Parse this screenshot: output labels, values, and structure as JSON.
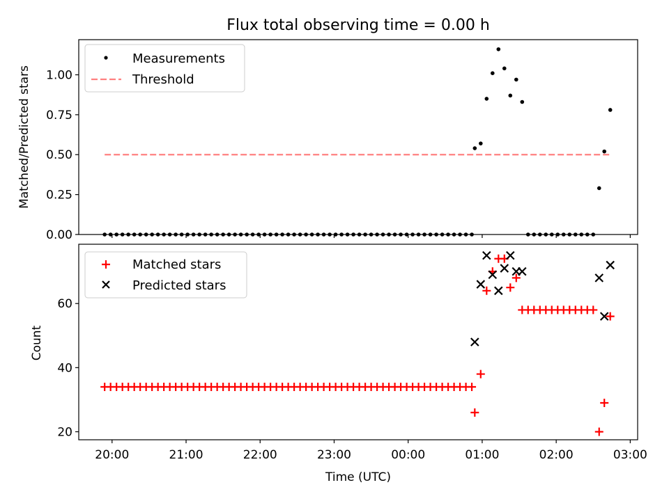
{
  "title": "Flux total observing time = 0.00 h",
  "xlabel": "Time (UTC)",
  "x_tick_labels": [
    "20:00",
    "21:00",
    "22:00",
    "23:00",
    "00:00",
    "01:00",
    "02:00",
    "03:00"
  ],
  "colors": {
    "measurement": "#000000",
    "threshold": "#ff8080",
    "matched": "#ff0000",
    "predicted": "#000000"
  },
  "chart_data": [
    {
      "type": "scatter",
      "title": "Flux total observing time = 0.00 h",
      "xlabel": "",
      "ylabel": "Matched/Predicted stars",
      "x_unit": "hours since 20:00 UTC",
      "xlim": [
        -0.45,
        7.1
      ],
      "ylim": [
        0.0,
        1.22
      ],
      "yticks": [
        0.0,
        0.25,
        0.5,
        0.75,
        1.0
      ],
      "ytick_labels": [
        "0.00",
        "0.25",
        "0.50",
        "0.75",
        "1.00"
      ],
      "legend": {
        "position": "upper-left",
        "entries": [
          "Measurements",
          "Threshold"
        ]
      },
      "series": [
        {
          "name": "Measurements",
          "marker": "dot",
          "x": [
            -0.1,
            -0.02,
            0.06,
            0.14,
            0.22,
            0.3,
            0.38,
            0.46,
            0.54,
            0.62,
            0.7,
            0.78,
            0.86,
            0.94,
            1.02,
            1.1,
            1.18,
            1.26,
            1.34,
            1.42,
            1.5,
            1.58,
            1.66,
            1.74,
            1.82,
            1.9,
            1.98,
            2.06,
            2.14,
            2.22,
            2.3,
            2.38,
            2.46,
            2.54,
            2.62,
            2.7,
            2.78,
            2.86,
            2.94,
            3.02,
            3.1,
            3.18,
            3.26,
            3.34,
            3.42,
            3.5,
            3.58,
            3.66,
            3.74,
            3.82,
            3.9,
            3.98,
            4.06,
            4.14,
            4.22,
            4.3,
            4.38,
            4.46,
            4.54,
            4.62,
            4.7,
            4.78,
            4.86,
            4.9,
            4.98,
            5.06,
            5.14,
            5.22,
            5.3,
            5.38,
            5.46,
            5.54,
            5.62,
            5.7,
            5.78,
            5.86,
            5.94,
            6.02,
            6.1,
            6.18,
            6.26,
            6.34,
            6.42,
            6.5,
            6.58,
            6.65,
            6.73
          ],
          "y": [
            0,
            0,
            0,
            0,
            0,
            0,
            0,
            0,
            0,
            0,
            0,
            0,
            0,
            0,
            0,
            0,
            0,
            0,
            0,
            0,
            0,
            0,
            0,
            0,
            0,
            0,
            0,
            0,
            0,
            0,
            0,
            0,
            0,
            0,
            0,
            0,
            0,
            0,
            0,
            0,
            0,
            0,
            0,
            0,
            0,
            0,
            0,
            0,
            0,
            0,
            0,
            0,
            0,
            0,
            0,
            0,
            0,
            0,
            0,
            0,
            0,
            0,
            0,
            0.54,
            0.57,
            0.85,
            1.01,
            1.16,
            1.04,
            0.87,
            0.97,
            0.83,
            0,
            0,
            0,
            0,
            0,
            0,
            0,
            0,
            0,
            0,
            0,
            0,
            0.29,
            0.52,
            0.78
          ]
        },
        {
          "name": "Threshold",
          "style": "dashed",
          "x": [
            -0.1,
            6.73
          ],
          "y": [
            0.5,
            0.5
          ]
        }
      ]
    },
    {
      "type": "scatter",
      "xlabel": "Time (UTC)",
      "ylabel": "Count",
      "x_unit": "hours since 20:00 UTC",
      "xlim": [
        -0.45,
        7.1
      ],
      "ylim": [
        17.5,
        78.5
      ],
      "yticks": [
        20,
        40,
        60
      ],
      "ytick_labels": [
        "20",
        "40",
        "60"
      ],
      "xticks": [
        0,
        1,
        2,
        3,
        4,
        5,
        6,
        7
      ],
      "xtick_labels": [
        "20:00",
        "21:00",
        "22:00",
        "23:00",
        "00:00",
        "01:00",
        "02:00",
        "03:00"
      ],
      "legend": {
        "position": "upper-left",
        "entries": [
          "Matched stars",
          "Predicted stars"
        ]
      },
      "series": [
        {
          "name": "Matched stars",
          "marker": "plus",
          "x": [
            -0.1,
            -0.02,
            0.06,
            0.14,
            0.22,
            0.3,
            0.38,
            0.46,
            0.54,
            0.62,
            0.7,
            0.78,
            0.86,
            0.94,
            1.02,
            1.1,
            1.18,
            1.26,
            1.34,
            1.42,
            1.5,
            1.58,
            1.66,
            1.74,
            1.82,
            1.9,
            1.98,
            2.06,
            2.14,
            2.22,
            2.3,
            2.38,
            2.46,
            2.54,
            2.62,
            2.7,
            2.78,
            2.86,
            2.94,
            3.02,
            3.1,
            3.18,
            3.26,
            3.34,
            3.42,
            3.5,
            3.58,
            3.66,
            3.74,
            3.82,
            3.9,
            3.98,
            4.06,
            4.14,
            4.22,
            4.3,
            4.38,
            4.46,
            4.54,
            4.62,
            4.7,
            4.78,
            4.86,
            4.9,
            4.98,
            5.06,
            5.14,
            5.22,
            5.3,
            5.38,
            5.46,
            5.54,
            5.62,
            5.7,
            5.78,
            5.86,
            5.94,
            6.02,
            6.1,
            6.18,
            6.26,
            6.34,
            6.42,
            6.5,
            6.58,
            6.65,
            6.73
          ],
          "y": [
            34,
            34,
            34,
            34,
            34,
            34,
            34,
            34,
            34,
            34,
            34,
            34,
            34,
            34,
            34,
            34,
            34,
            34,
            34,
            34,
            34,
            34,
            34,
            34,
            34,
            34,
            34,
            34,
            34,
            34,
            34,
            34,
            34,
            34,
            34,
            34,
            34,
            34,
            34,
            34,
            34,
            34,
            34,
            34,
            34,
            34,
            34,
            34,
            34,
            34,
            34,
            34,
            34,
            34,
            34,
            34,
            34,
            34,
            34,
            34,
            34,
            34,
            34,
            26,
            38,
            64,
            70,
            74,
            74,
            65,
            68,
            58,
            58,
            58,
            58,
            58,
            58,
            58,
            58,
            58,
            58,
            58,
            58,
            58,
            20,
            29,
            56
          ]
        },
        {
          "name": "Predicted stars",
          "marker": "x",
          "x": [
            4.9,
            4.98,
            5.06,
            5.14,
            5.22,
            5.3,
            5.38,
            5.46,
            5.54,
            6.58,
            6.65,
            6.73
          ],
          "y": [
            48,
            66,
            75,
            69,
            64,
            71,
            75,
            70,
            70,
            68,
            56,
            72
          ]
        }
      ]
    }
  ]
}
